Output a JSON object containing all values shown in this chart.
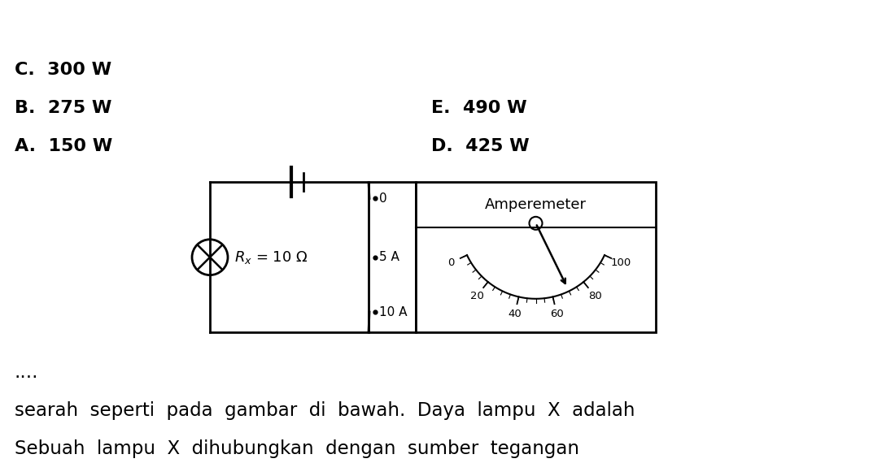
{
  "title_line1": "Sebuah  lampu  X  dihubungkan  dengan  sumber  tegangan",
  "title_line2": "searah  seperti  pada  gambar  di  bawah.  Daya  lampu  X  adalah",
  "title_line3": "....",
  "bg_color": "#ffffff",
  "text_color": "#000000",
  "choices_left": [
    "A.  150 W",
    "B.  275 W",
    "C.  300 W"
  ],
  "choices_right": [
    "D.  425 W",
    "E.  490 W"
  ],
  "gauge_scale": [
    0,
    20,
    40,
    60,
    80,
    100
  ],
  "needle_value": 70,
  "rx_label": "R",
  "rx_sub": "x",
  "rx_val": " = 10 Ω",
  "terminal_labels": [
    "10 A",
    "5 A",
    "0"
  ]
}
